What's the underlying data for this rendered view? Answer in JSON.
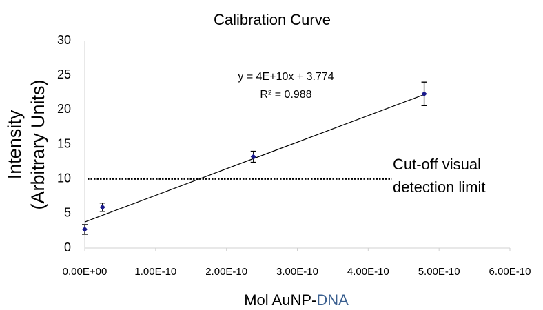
{
  "chart_data": {
    "type": "scatter",
    "title": "Calibration Curve",
    "x_label": {
      "text": "Mol AuNP-",
      "highlight": "DNA",
      "highlight_color": "#3a5f8f"
    },
    "y_label": [
      "Intensity",
      "(Arbitrary Units)"
    ],
    "xlim": [
      0,
      6e-10
    ],
    "ylim": [
      0,
      30
    ],
    "xticks": [
      {
        "value": 0,
        "label": "0.00E+00"
      },
      {
        "value": 1e-10,
        "label": "1.00E-10"
      },
      {
        "value": 2e-10,
        "label": "2.00E-10"
      },
      {
        "value": 3e-10,
        "label": "3.00E-10"
      },
      {
        "value": 4e-10,
        "label": "4.00E-10"
      },
      {
        "value": 5e-10,
        "label": "5.00E-10"
      },
      {
        "value": 6e-10,
        "label": "6.00E-10"
      }
    ],
    "yticks": [
      0,
      5,
      10,
      15,
      20,
      25,
      30
    ],
    "grid": false,
    "series": [
      {
        "color": "#1a1a8c",
        "x": [
          0,
          2.5e-11,
          2.38e-10,
          4.79e-10
        ],
        "values": [
          2.7,
          5.9,
          13.2,
          22.3
        ],
        "errors": [
          0.7,
          0.6,
          0.8,
          1.7
        ]
      }
    ],
    "trendline": {
      "x": [
        0,
        4.79e-10
      ],
      "values": [
        3.774,
        22.2
      ],
      "equation": "y = 4E+10x + 3.774",
      "r2": "R² = 0.988"
    },
    "cutoff": {
      "value": 10,
      "x": [
        0,
        4.33e-10
      ],
      "label": [
        "Cut-off visual",
        "detection limit"
      ]
    }
  }
}
